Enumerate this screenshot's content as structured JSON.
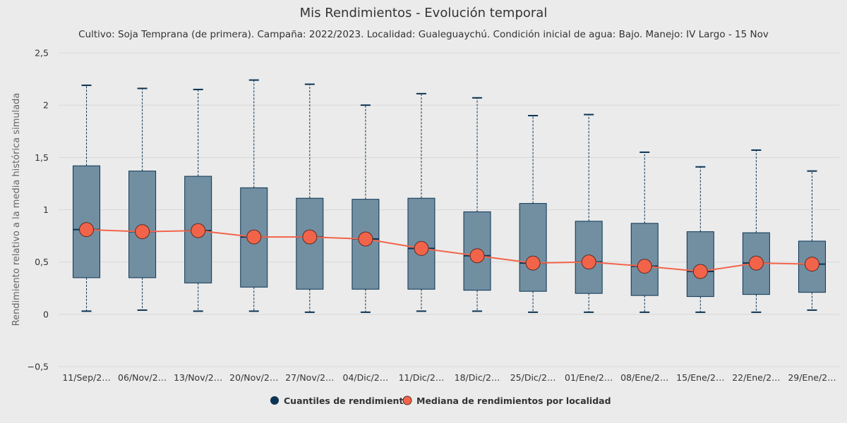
{
  "chart_data": {
    "type": "boxplot",
    "title": "Mis Rendimientos - Evolución temporal",
    "subtitle": "Cultivo: Soja Temprana (de primera). Campaña: 2022/2023. Localidad: Gualeguaychú. Condición inicial de agua: Bajo. Manejo: IV Largo - 15 Nov",
    "xlabel": "",
    "ylabel": "Rendimiento relativo a la media histórica simulada",
    "ylim": [
      -0.5,
      2.5
    ],
    "yticks": [
      -0.5,
      0,
      0.5,
      1,
      1.5,
      2,
      2.5
    ],
    "ytick_labels": [
      "−0,5",
      "0",
      "0,5",
      "1",
      "1,5",
      "2",
      "2,5"
    ],
    "grid": true,
    "legend_placement": "bottom-center",
    "categories": [
      "11/Sep/2…",
      "06/Nov/2…",
      "13/Nov/2…",
      "20/Nov/2…",
      "27/Nov/2…",
      "04/Dic/2…",
      "11/Dic/2…",
      "18/Dic/2…",
      "25/Dic/2…",
      "01/Ene/2…",
      "08/Ene/2…",
      "15/Ene/2…",
      "22/Ene/2…",
      "29/Ene/2…"
    ],
    "series": [
      {
        "name": "Cuantiles de rendimiento",
        "type": "boxplot",
        "color": "#0b3353",
        "fill": "#728fa2",
        "data": [
          {
            "low": 0.03,
            "q1": 0.35,
            "median": 0.81,
            "q3": 1.42,
            "high": 2.19
          },
          {
            "low": 0.04,
            "q1": 0.35,
            "median": 0.79,
            "q3": 1.37,
            "high": 2.16
          },
          {
            "low": 0.03,
            "q1": 0.3,
            "median": 0.8,
            "q3": 1.32,
            "high": 2.15
          },
          {
            "low": 0.03,
            "q1": 0.26,
            "median": 0.74,
            "q3": 1.21,
            "high": 2.24
          },
          {
            "low": 0.02,
            "q1": 0.24,
            "median": 0.74,
            "q3": 1.11,
            "high": 2.2
          },
          {
            "low": 0.02,
            "q1": 0.24,
            "median": 0.72,
            "q3": 1.1,
            "high": 2.0
          },
          {
            "low": 0.03,
            "q1": 0.24,
            "median": 0.63,
            "q3": 1.11,
            "high": 2.11
          },
          {
            "low": 0.03,
            "q1": 0.23,
            "median": 0.56,
            "q3": 0.98,
            "high": 2.07
          },
          {
            "low": 0.02,
            "q1": 0.22,
            "median": 0.49,
            "q3": 1.06,
            "high": 1.9
          },
          {
            "low": 0.02,
            "q1": 0.2,
            "median": 0.5,
            "q3": 0.89,
            "high": 1.91
          },
          {
            "low": 0.02,
            "q1": 0.18,
            "median": 0.46,
            "q3": 0.87,
            "high": 1.55
          },
          {
            "low": 0.02,
            "q1": 0.17,
            "median": 0.41,
            "q3": 0.79,
            "high": 1.41
          },
          {
            "low": 0.02,
            "q1": 0.19,
            "median": 0.49,
            "q3": 0.78,
            "high": 1.57
          },
          {
            "low": 0.04,
            "q1": 0.21,
            "median": 0.48,
            "q3": 0.7,
            "high": 1.37
          }
        ]
      },
      {
        "name": "Mediana de rendimientos por localidad",
        "type": "line",
        "color": "#f2644a",
        "values": [
          0.81,
          0.79,
          0.8,
          0.74,
          0.74,
          0.72,
          0.63,
          0.56,
          0.49,
          0.5,
          0.46,
          0.41,
          0.49,
          0.48
        ]
      }
    ]
  },
  "colors": {
    "background": "#ebebeb",
    "gridline": "#d8d8d8",
    "box_stroke": "#0b3353",
    "box_fill": "#728fa2",
    "line": "#f2644a",
    "marker_stroke": "#5a2a22"
  },
  "legend": {
    "items": [
      {
        "label": "Cuantiles de rendimiento",
        "color": "#0b3353"
      },
      {
        "label": "Mediana de rendimientos por localidad",
        "color": "#f2644a"
      }
    ]
  }
}
